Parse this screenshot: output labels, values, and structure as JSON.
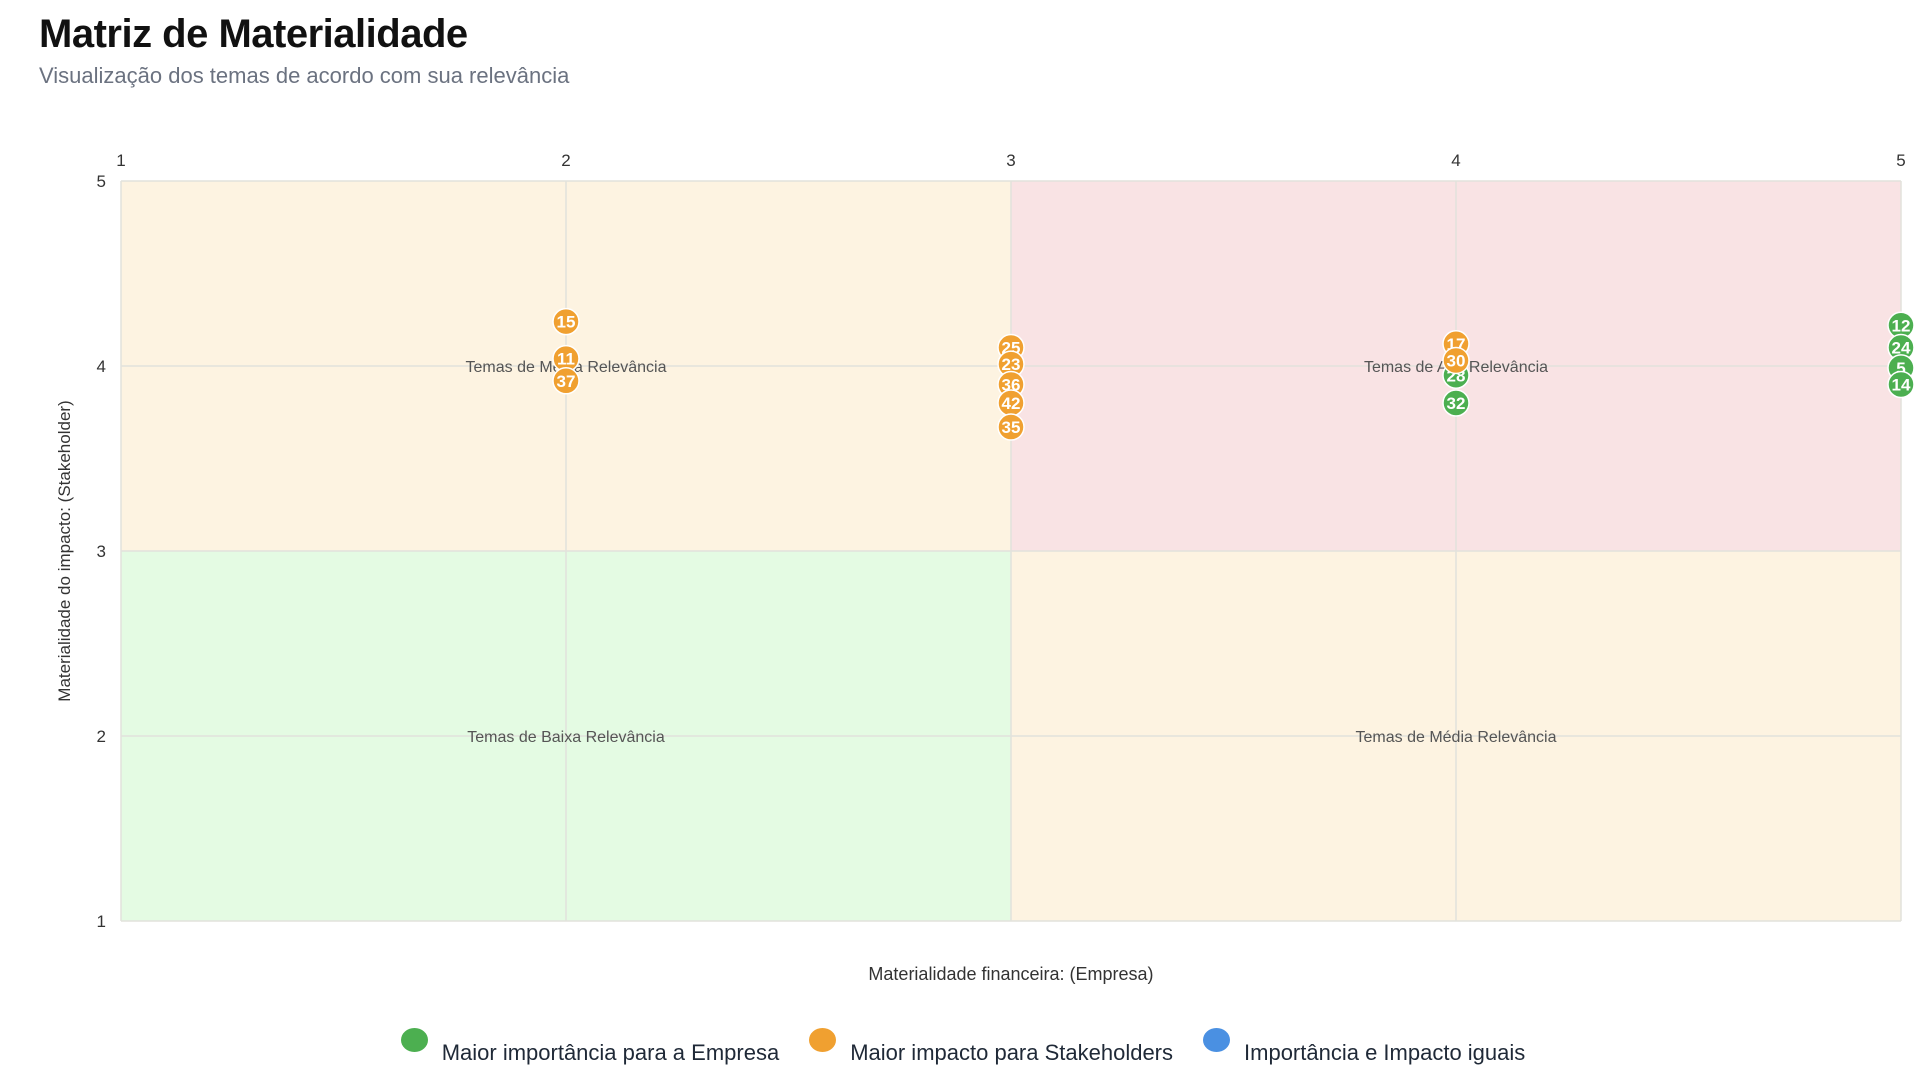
{
  "header": {
    "title": "Matriz de Materialidade",
    "subtitle": "Visualização dos temas de acordo com sua relevância"
  },
  "chart_data": {
    "type": "scatter",
    "title": "Matriz de Materialidade",
    "subtitle": "Visualização dos temas de acordo com sua relevância",
    "xlabel": "Materialidade financeira: (Empresa)",
    "ylabel": "Materialidade do impacto: (Stakeholder)",
    "xlim": [
      1,
      5
    ],
    "ylim": [
      1,
      5
    ],
    "x_ticks": [
      1,
      2,
      3,
      4,
      5
    ],
    "y_ticks": [
      1,
      2,
      3,
      4,
      5
    ],
    "x_axis_position": "top",
    "grid": true,
    "quadrants": [
      {
        "x": [
          1,
          3
        ],
        "y": [
          3,
          5
        ],
        "label": "Temas de Média Relevância",
        "color": "#fdf3e1"
      },
      {
        "x": [
          3,
          5
        ],
        "y": [
          3,
          5
        ],
        "label": "Temas de Alta Relevância",
        "color": "#f9e3e4"
      },
      {
        "x": [
          1,
          3
        ],
        "y": [
          1,
          3
        ],
        "label": "Temas de Baixa Relevância",
        "color": "#e4fbe3"
      },
      {
        "x": [
          3,
          5
        ],
        "y": [
          1,
          3
        ],
        "label": "Temas de Média Relevância",
        "color": "#fdf3e1"
      }
    ],
    "series": [
      {
        "name": "Maior importância para a Empresa",
        "color": "#4caf50",
        "points": [
          {
            "id": "28",
            "x": 4,
            "y": 3.95
          },
          {
            "id": "32",
            "x": 4,
            "y": 3.8
          },
          {
            "id": "12",
            "x": 5,
            "y": 4.22
          },
          {
            "id": "24",
            "x": 5,
            "y": 4.1
          },
          {
            "id": "5",
            "x": 5,
            "y": 3.99
          },
          {
            "id": "14",
            "x": 5,
            "y": 3.9
          }
        ]
      },
      {
        "name": "Maior impacto para Stakeholders",
        "color": "#f0a030",
        "points": [
          {
            "id": "15",
            "x": 2,
            "y": 4.24
          },
          {
            "id": "11",
            "x": 2,
            "y": 4.04
          },
          {
            "id": "37",
            "x": 2,
            "y": 3.92
          },
          {
            "id": "25",
            "x": 3,
            "y": 4.1
          },
          {
            "id": "23",
            "x": 3,
            "y": 4.01
          },
          {
            "id": "36",
            "x": 3,
            "y": 3.9
          },
          {
            "id": "42",
            "x": 3,
            "y": 3.8
          },
          {
            "id": "35",
            "x": 3,
            "y": 3.67
          },
          {
            "id": "17",
            "x": 4,
            "y": 4.12
          },
          {
            "id": "30",
            "x": 4,
            "y": 4.03
          }
        ]
      },
      {
        "name": "Importância e Impacto iguais",
        "color": "#4a90e2",
        "points": []
      }
    ],
    "legend_position": "bottom"
  }
}
